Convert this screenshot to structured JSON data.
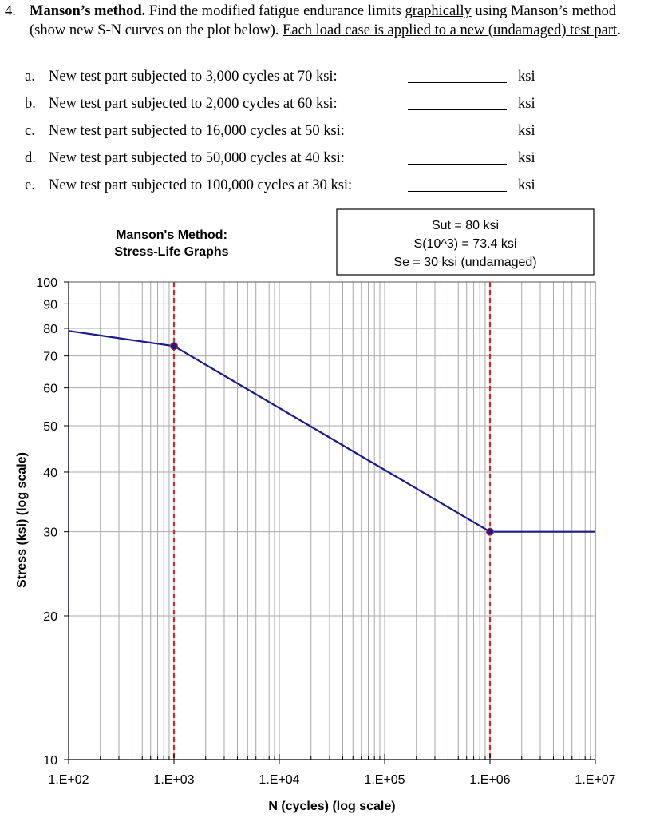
{
  "problem": {
    "number": "4.",
    "title": "Manson’s method.",
    "text1": " Find the modified fatigue endurance limits ",
    "text_underlined1": "graphically",
    "text2": " using Manson’s method (show new S-N curves on the plot below).  ",
    "text_underlined2": "Each load case is applied to a new (undamaged) test part",
    "text3": ".",
    "cases": [
      {
        "letter": "a.",
        "text": "New test part subjected to 3,000 cycles at 70 ksi:",
        "unit": "ksi"
      },
      {
        "letter": "b.",
        "text": "New test part subjected to 2,000 cycles at 60 ksi:",
        "unit": "ksi"
      },
      {
        "letter": "c.",
        "text": "New test part subjected to 16,000 cycles at 50 ksi:",
        "unit": "ksi"
      },
      {
        "letter": "d.",
        "text": "New test part subjected to 50,000 cycles at 40 ksi:",
        "unit": "ksi"
      },
      {
        "letter": "e.",
        "text": "New test part subjected to 100,000 cycles at 30 ksi:",
        "unit": "ksi"
      }
    ]
  },
  "chart_data": {
    "type": "line",
    "title_lines": [
      "Manson's Method:",
      "Stress-Life Graphs"
    ],
    "info_box": [
      "Sut = 80 ksi",
      "S(10^3) = 73.4 ksi",
      "Se = 30 ksi (undamaged)"
    ],
    "xlabel": "N (cycles) (log scale)",
    "ylabel": "Stress (ksi) (log scale)",
    "x_scale": "log",
    "y_scale": "log",
    "xlim": [
      100,
      10000000
    ],
    "ylim": [
      10,
      100
    ],
    "x_tick_values": [
      100,
      1000,
      10000,
      100000,
      1000000,
      10000000
    ],
    "x_tick_labels": [
      "1.E+02",
      "1.E+03",
      "1.E+04",
      "1.E+05",
      "1.E+06",
      "1.E+07"
    ],
    "y_tick_values": [
      10,
      20,
      30,
      40,
      50,
      60,
      70,
      80,
      90,
      100
    ],
    "y_tick_labels": [
      "10",
      "20",
      "30",
      "40",
      "50",
      "60",
      "70",
      "80",
      "90",
      "100"
    ],
    "grid": true,
    "series": [
      {
        "color": "#1a1a8c",
        "x": [
          100,
          1000,
          1000000,
          10000000
        ],
        "y": [
          79,
          73.4,
          30,
          30
        ],
        "markers_x": [
          1000,
          1000000
        ],
        "markers_y": [
          73.4,
          30
        ]
      }
    ],
    "reference_lines_x": [
      1000,
      1000000
    ],
    "reference_line_color": "#d62728",
    "series_color": "#1a1a8c",
    "marker_color": "#1a1a8c"
  }
}
